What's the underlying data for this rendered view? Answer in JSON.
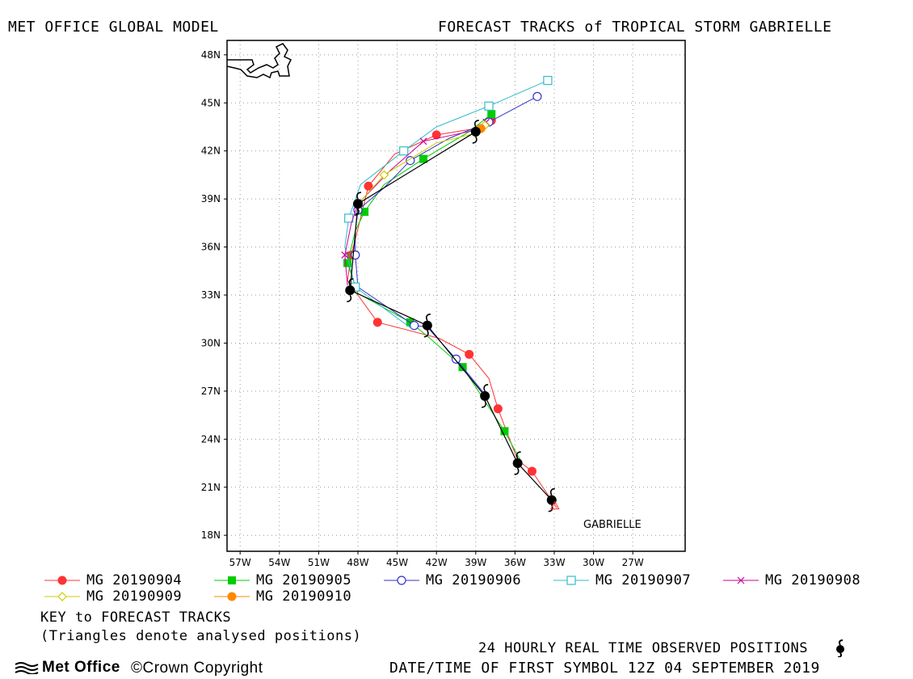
{
  "header": {
    "left_title": "MET OFFICE GLOBAL MODEL",
    "right_title": "FORECAST TRACKS of TROPICAL STORM GABRIELLE"
  },
  "map": {
    "lon_range": [
      -58,
      -23
    ],
    "lat_range": [
      17,
      48.9
    ],
    "lat_ticks": [
      "48N",
      "45N",
      "42N",
      "39N",
      "36N",
      "33N",
      "30N",
      "27N",
      "24N",
      "21N",
      "18N"
    ],
    "lon_ticks": [
      "57W",
      "54W",
      "51W",
      "48W",
      "45W",
      "42W",
      "39W",
      "36W",
      "33W",
      "30W",
      "27W"
    ],
    "storm_label": "GABRIELLE"
  },
  "chart_data": {
    "type": "line",
    "xlabel": "",
    "ylabel": "",
    "observed": [
      [
        -33.2,
        20.2
      ],
      [
        -35.8,
        22.5
      ],
      [
        -38.3,
        26.7
      ],
      [
        -42.7,
        31.1
      ],
      [
        -48.6,
        33.3
      ],
      [
        -48.0,
        38.7
      ],
      [
        -39.0,
        43.2
      ]
    ],
    "series": [
      {
        "name": "MG 20190904",
        "color": "#ff3333",
        "marker": "circle-filled",
        "points": [
          [
            -32.8,
            19.7
          ],
          [
            -34.7,
            22.0
          ],
          [
            -35.8,
            22.7
          ],
          [
            -37.3,
            25.9
          ],
          [
            -38.0,
            27.8
          ],
          [
            -39.5,
            29.3
          ],
          [
            -41.8,
            30.3
          ],
          [
            -46.5,
            31.3
          ],
          [
            -48.8,
            33.9
          ],
          [
            -48.5,
            35.5
          ],
          [
            -47.8,
            37.8
          ],
          [
            -47.2,
            39.8
          ],
          [
            -45.2,
            41.8
          ],
          [
            -42.0,
            43.0
          ],
          [
            -39.0,
            43.4
          ],
          [
            -37.8,
            43.9
          ]
        ]
      },
      {
        "name": "MG 20190905",
        "color": "#00cc00",
        "marker": "square-filled",
        "points": [
          [
            -35.6,
            22.7
          ],
          [
            -36.8,
            24.5
          ],
          [
            -38.0,
            26.0
          ],
          [
            -40.0,
            28.5
          ],
          [
            -42.5,
            30.3
          ],
          [
            -44.0,
            31.3
          ],
          [
            -48.0,
            33.1
          ],
          [
            -48.8,
            35.0
          ],
          [
            -48.2,
            37.0
          ],
          [
            -47.5,
            38.2
          ],
          [
            -46.0,
            39.9
          ],
          [
            -43.0,
            41.5
          ],
          [
            -39.5,
            43.2
          ],
          [
            -37.8,
            44.3
          ]
        ]
      },
      {
        "name": "MG 20190906",
        "color": "#3333cc",
        "marker": "circle-open",
        "points": [
          [
            -38.3,
            26.8
          ],
          [
            -40.5,
            29.0
          ],
          [
            -42.7,
            31.0
          ],
          [
            -43.7,
            31.1
          ],
          [
            -48.0,
            33.5
          ],
          [
            -48.2,
            35.5
          ],
          [
            -48.2,
            37.0
          ],
          [
            -48.0,
            38.3
          ],
          [
            -46.0,
            39.7
          ],
          [
            -44.0,
            41.4
          ],
          [
            -41.0,
            42.8
          ],
          [
            -38.0,
            43.8
          ],
          [
            -34.3,
            45.4
          ]
        ]
      },
      {
        "name": "MG 20190907",
        "color": "#33bbcc",
        "marker": "square-open",
        "points": [
          [
            -43.9,
            30.9
          ],
          [
            -48.2,
            33.5
          ],
          [
            -49.0,
            36.0
          ],
          [
            -48.7,
            37.8
          ],
          [
            -47.8,
            39.9
          ],
          [
            -44.5,
            42.0
          ],
          [
            -42.0,
            43.5
          ],
          [
            -38.0,
            44.8
          ],
          [
            -33.5,
            46.4
          ]
        ]
      },
      {
        "name": "MG 20190908",
        "color": "#cc0099",
        "marker": "x",
        "points": [
          [
            -48.8,
            33.6
          ],
          [
            -49.0,
            35.5
          ],
          [
            -48.5,
            37.5
          ],
          [
            -48.0,
            38.7
          ],
          [
            -45.5,
            40.8
          ],
          [
            -43.0,
            42.6
          ],
          [
            -39.0,
            43.3
          ],
          [
            -38.2,
            43.8
          ]
        ]
      },
      {
        "name": "MG 20190909",
        "color": "#cccc00",
        "marker": "diamond-open",
        "points": [
          [
            -48.2,
            38.5
          ],
          [
            -46.0,
            40.5
          ],
          [
            -42.0,
            42.5
          ],
          [
            -39.0,
            43.1
          ],
          [
            -38.3,
            43.6
          ]
        ]
      },
      {
        "name": "MG 20190910",
        "color": "#ff8800",
        "marker": "circle-filled",
        "points": [
          [
            -39.0,
            43.2
          ],
          [
            -38.6,
            43.4
          ]
        ]
      }
    ]
  },
  "legend": {
    "items": [
      {
        "label": "MG 20190904",
        "color": "#ff3333",
        "marker": "circle-filled"
      },
      {
        "label": "MG 20190905",
        "color": "#00cc00",
        "marker": "square-filled"
      },
      {
        "label": "MG 20190906",
        "color": "#3333cc",
        "marker": "circle-open"
      },
      {
        "label": "MG 20190907",
        "color": "#33bbcc",
        "marker": "square-open"
      },
      {
        "label": "MG 20190908",
        "color": "#cc0099",
        "marker": "x"
      },
      {
        "label": "MG 20190909",
        "color": "#cccc00",
        "marker": "diamond-open"
      },
      {
        "label": "MG 20190910",
        "color": "#ff8800",
        "marker": "circle-filled"
      }
    ]
  },
  "footer": {
    "key_title": "KEY to FORECAST TRACKS",
    "key_note": "(Triangles denote analysed positions)",
    "observed_label": "24 HOURLY REAL TIME OBSERVED POSITIONS",
    "datetime": "DATE/TIME OF FIRST SYMBOL 12Z 04 SEPTEMBER 2019",
    "logo": "Met Office",
    "copyright": "©Crown Copyright"
  }
}
